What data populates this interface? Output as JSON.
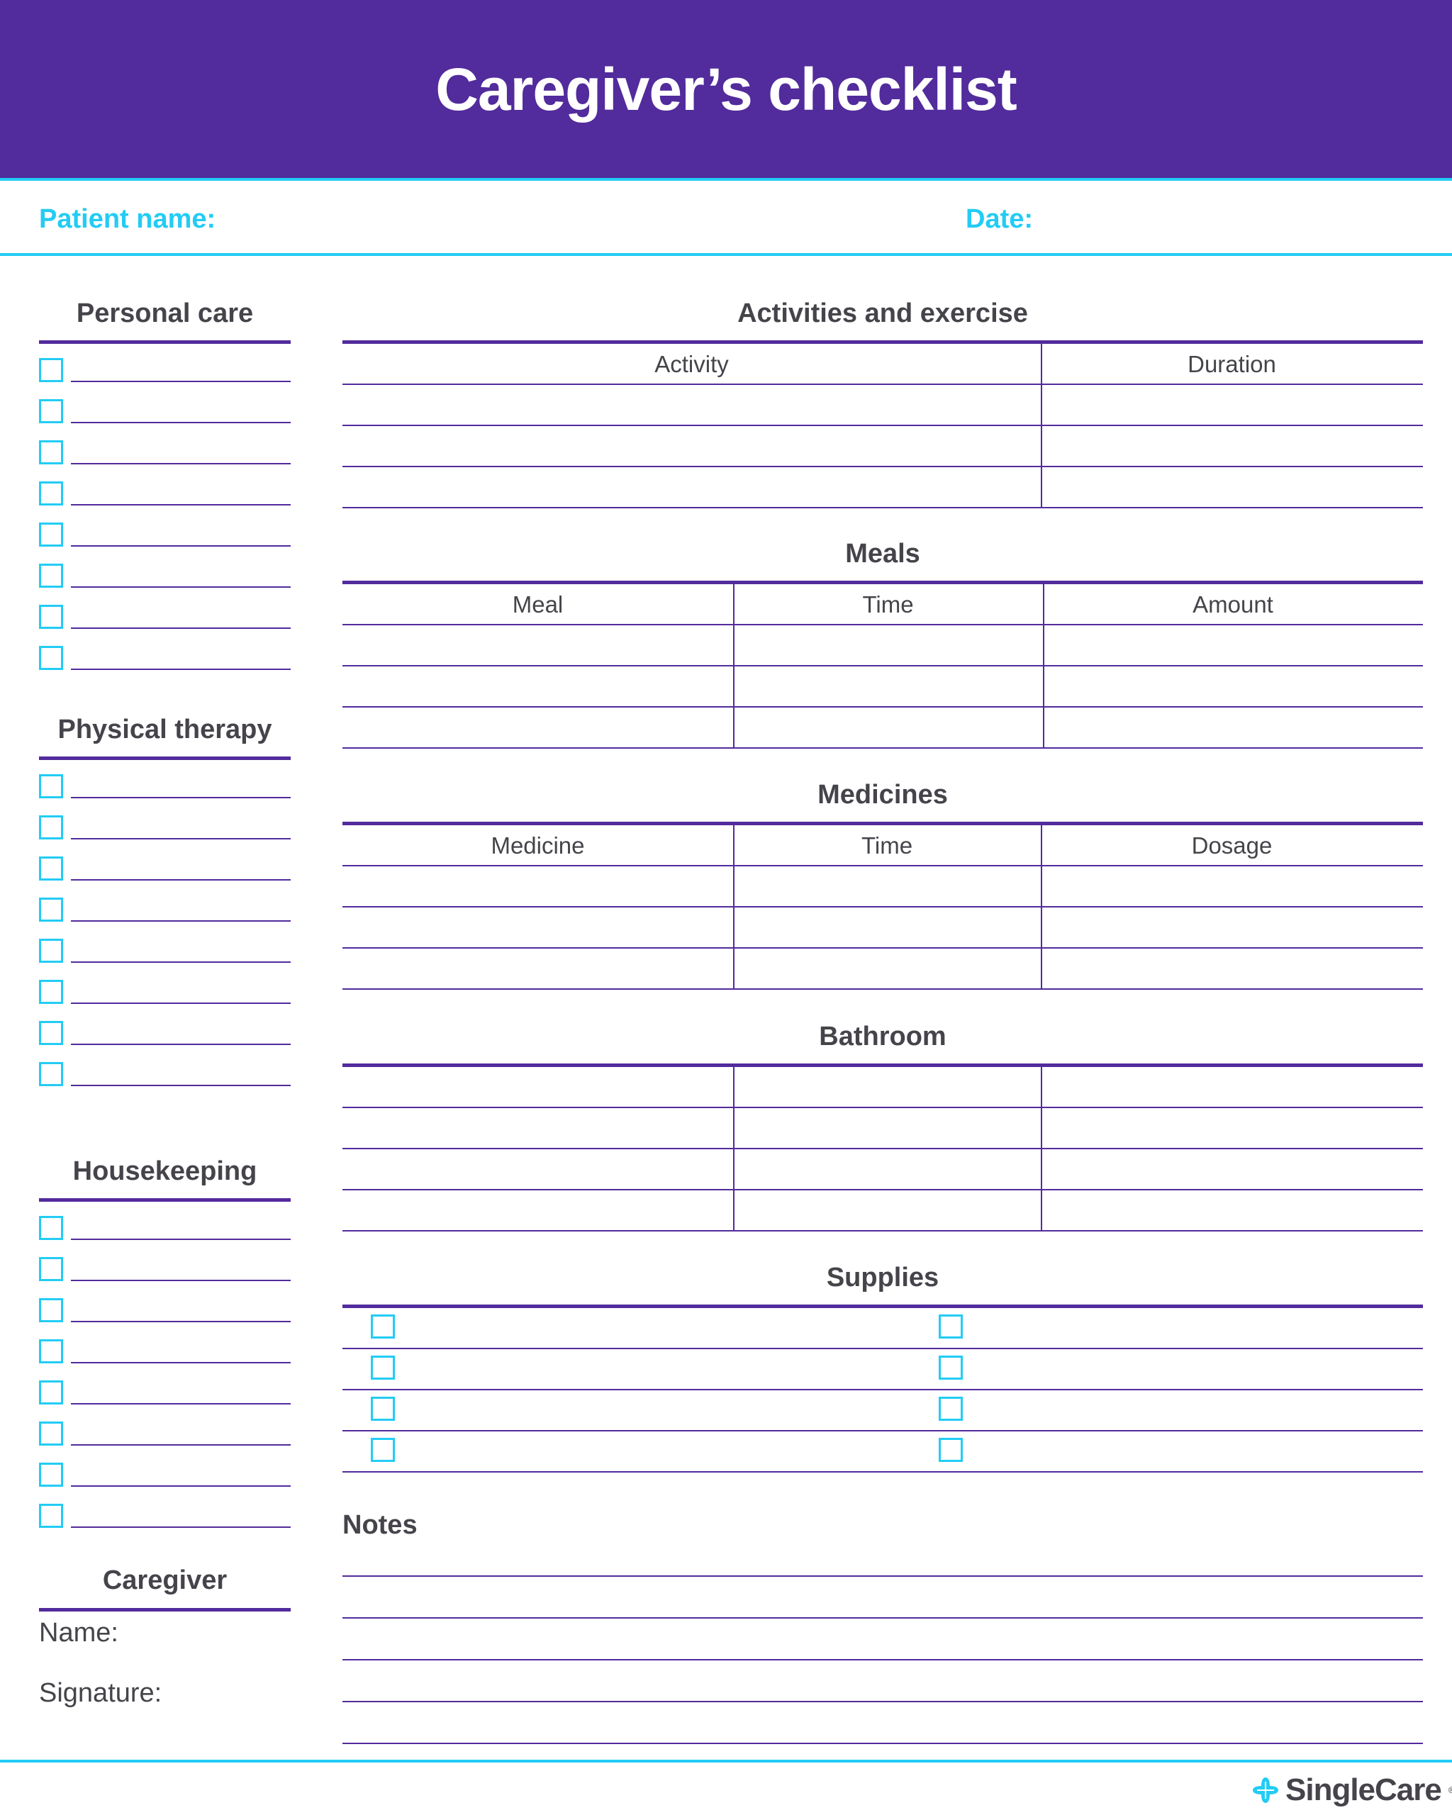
{
  "title": "Caregiver’s checklist",
  "patient_label": "Patient name:",
  "date_label": "Date:",
  "left_sections": [
    {
      "heading": "Personal care",
      "rows": 8
    },
    {
      "heading": "Physical therapy",
      "rows": 8
    },
    {
      "heading": "Housekeeping",
      "rows": 8
    }
  ],
  "caregiver": {
    "heading": "Caregiver",
    "name_label": "Name:",
    "signature_label": "Signature:"
  },
  "activities": {
    "heading": "Activities and exercise",
    "columns": [
      "Activity",
      "Duration"
    ],
    "rows": 3
  },
  "meals": {
    "heading": "Meals",
    "columns": [
      "Meal",
      "Time",
      "Amount"
    ],
    "rows": 3
  },
  "medicines": {
    "heading": "Medicines",
    "columns": [
      "Medicine",
      "Time",
      "Dosage"
    ],
    "rows": 3
  },
  "bathroom": {
    "heading": "Bathroom",
    "rows": 4
  },
  "supplies": {
    "heading": "Supplies",
    "rows": 4
  },
  "notes": {
    "heading": "Notes",
    "lines": 5
  },
  "brand": {
    "name": "SingleCare",
    "mark": "®"
  },
  "colors": {
    "purple": "#522b9c",
    "cyan": "#22ccf5",
    "text": "#46444a"
  }
}
